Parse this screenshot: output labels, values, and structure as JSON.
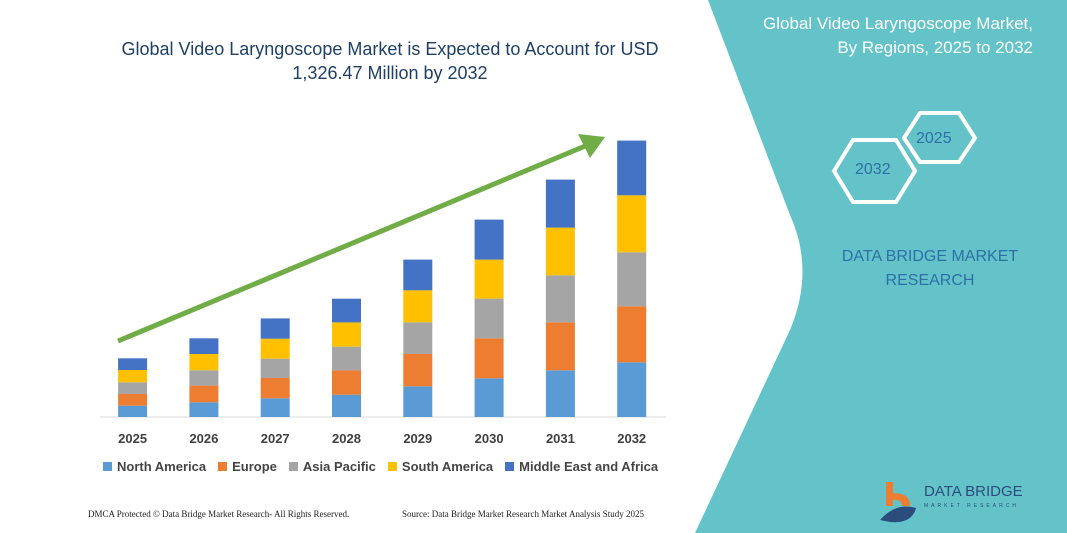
{
  "header": {
    "title": "Global Video Laryngoscope Market is Expected to Account for USD 1,326.47 Million by 2032",
    "side_title_line1": "Global Video Laryngoscope Market,",
    "side_title_line2": "By Regions, 2025 to 2032",
    "hex_2025": "2025",
    "hex_2032": "2032",
    "brand_line1": "DATA BRIDGE MARKET",
    "brand_line2": "RESEARCH"
  },
  "footer": {
    "left": "DMCA Protected © Data Bridge Market Research-  All Rights Reserved.",
    "right": "Source: Data Bridge Market Research  Market Analysis Study 2025"
  },
  "logo": {
    "name": "DATA BRIDGE",
    "sub": "MARKET RESEARCH"
  },
  "colors": {
    "teal": "#63c3c9",
    "arrow": "#70ad47"
  },
  "chart_data": {
    "type": "bar",
    "stacked": true,
    "title": "Global Video Laryngoscope Market is Expected to Account for USD 1,326.47 Million by 2032",
    "categories": [
      "2025",
      "2026",
      "2027",
      "2028",
      "2029",
      "2030",
      "2031",
      "2032"
    ],
    "y_axis_shown": false,
    "values_note_unit": "relative",
    "ylim": [
      0,
      280
    ],
    "legend_position": "bottom",
    "series": [
      {
        "name": "North America",
        "color": "#5b9bd5",
        "values": [
          11.3,
          14.7,
          18.7,
          22.3,
          30.7,
          38.7,
          46.7,
          54.7
        ]
      },
      {
        "name": "Europe",
        "color": "#ed7d31",
        "values": [
          11.7,
          16.7,
          20.3,
          24.3,
          32.3,
          40,
          48,
          56
        ]
      },
      {
        "name": "Asia Pacific",
        "color": "#a5a5a5",
        "values": [
          11.7,
          15.3,
          19.3,
          23.7,
          31.7,
          39.7,
          47,
          54
        ]
      },
      {
        "name": "South America",
        "color": "#ffc000",
        "values": [
          12.3,
          16.3,
          20,
          24.3,
          32,
          39,
          47.7,
          57
        ]
      },
      {
        "name": "Middle East and Africa",
        "color": "#4472c4",
        "values": [
          11.7,
          15.7,
          20.3,
          23.7,
          30.7,
          40,
          48,
          54.7
        ]
      }
    ],
    "trend_arrow": true
  }
}
